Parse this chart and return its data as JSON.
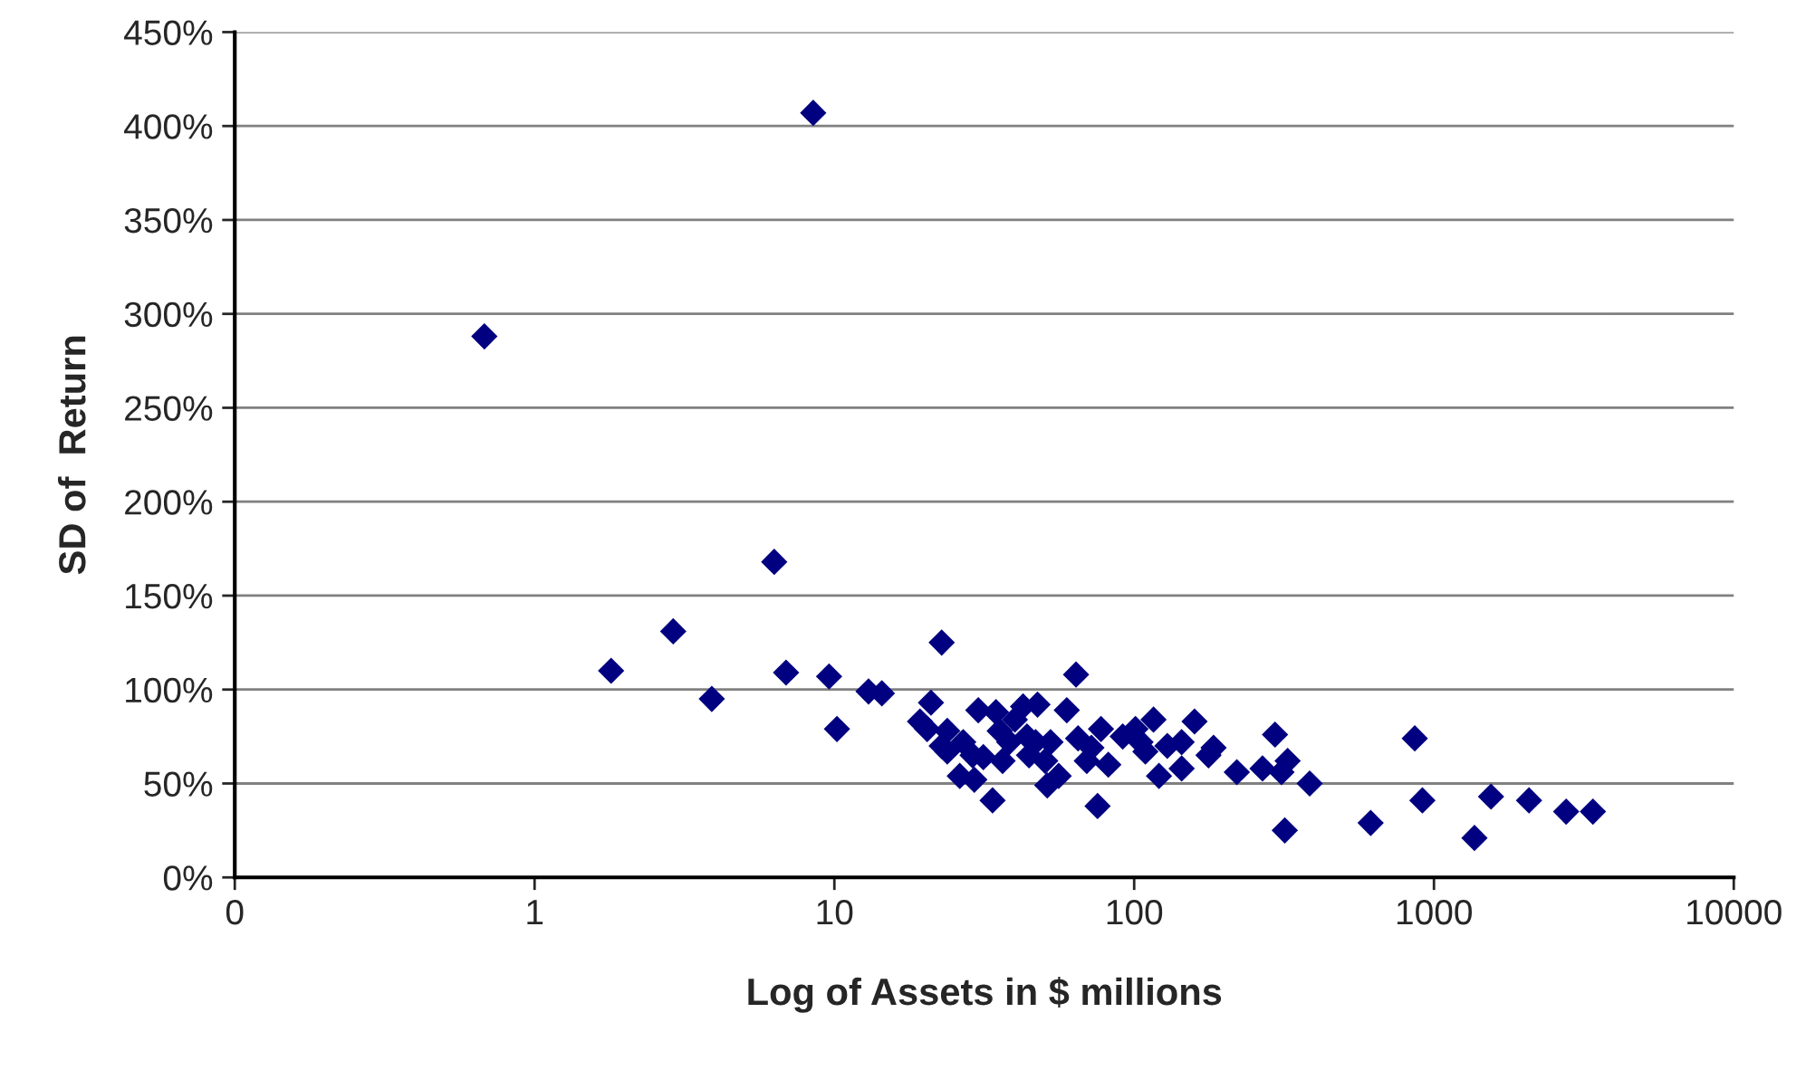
{
  "chart_data": {
    "type": "scatter",
    "xlabel": "Log of Assets in $ millions",
    "ylabel": "SD of  Return",
    "log": "x",
    "grid": "y",
    "marker": "diamond",
    "legend": false,
    "xlim": [
      0.1,
      10000
    ],
    "xticks": [
      {
        "value": 0.1,
        "label": "0"
      },
      1,
      10,
      100,
      1000,
      10000
    ],
    "ylim": [
      0,
      450
    ],
    "yticks": [
      {
        "value": 0,
        "label": "0%"
      },
      {
        "value": 50,
        "label": "50%"
      },
      {
        "value": 100,
        "label": "100%"
      },
      {
        "value": 150,
        "label": "150%"
      },
      {
        "value": 200,
        "label": "200%"
      },
      {
        "value": 250,
        "label": "250%"
      },
      {
        "value": 300,
        "label": "300%"
      },
      {
        "value": 350,
        "label": "350%"
      },
      {
        "value": 400,
        "label": "400%"
      },
      {
        "value": 450,
        "label": "450%"
      }
    ],
    "series": [
      {
        "color": "#000080",
        "x": [
          0.68,
          8.5,
          6.3,
          1.8,
          2.9,
          3.9,
          6.9,
          9.6,
          10.2,
          13,
          14.4,
          22.8,
          21,
          19.3,
          64,
          33.7,
          75.5,
          159,
          295,
          318,
          385,
          615,
          863,
          915,
          1365,
          1550,
          2075,
          2760,
          3390,
          20.4,
          23.8,
          22.8,
          23.8,
          26.2,
          26.9,
          29.3,
          30.2,
          28.9,
          31.4,
          34.6,
          35.6,
          36.4,
          38.3,
          40,
          42.6,
          43.9,
          44.6,
          47.6,
          46.9,
          50.5,
          52.6,
          51.3,
          56,
          59.6,
          65,
          69.5,
          72,
          77.5,
          82,
          91.6,
          101,
          105,
          109,
          116,
          121,
          129,
          144,
          144,
          177,
          184,
          220,
          268,
          325,
          310
        ],
        "values": [
          288,
          407,
          168,
          110,
          131,
          95,
          109,
          107,
          79,
          99,
          98,
          125,
          93,
          83,
          108,
          41,
          38,
          83,
          76,
          25,
          50,
          29,
          74,
          41,
          21,
          43,
          41,
          35,
          35,
          79,
          78,
          70,
          67,
          54,
          72,
          52,
          89,
          65,
          64,
          88,
          78,
          62,
          72,
          84,
          91,
          75,
          65,
          92,
          72,
          62,
          72,
          49,
          54,
          89,
          74,
          62,
          69,
          79,
          60,
          75,
          79,
          72,
          67,
          84,
          54,
          70,
          72,
          58,
          65,
          69,
          56,
          58,
          62,
          56
        ]
      }
    ]
  }
}
